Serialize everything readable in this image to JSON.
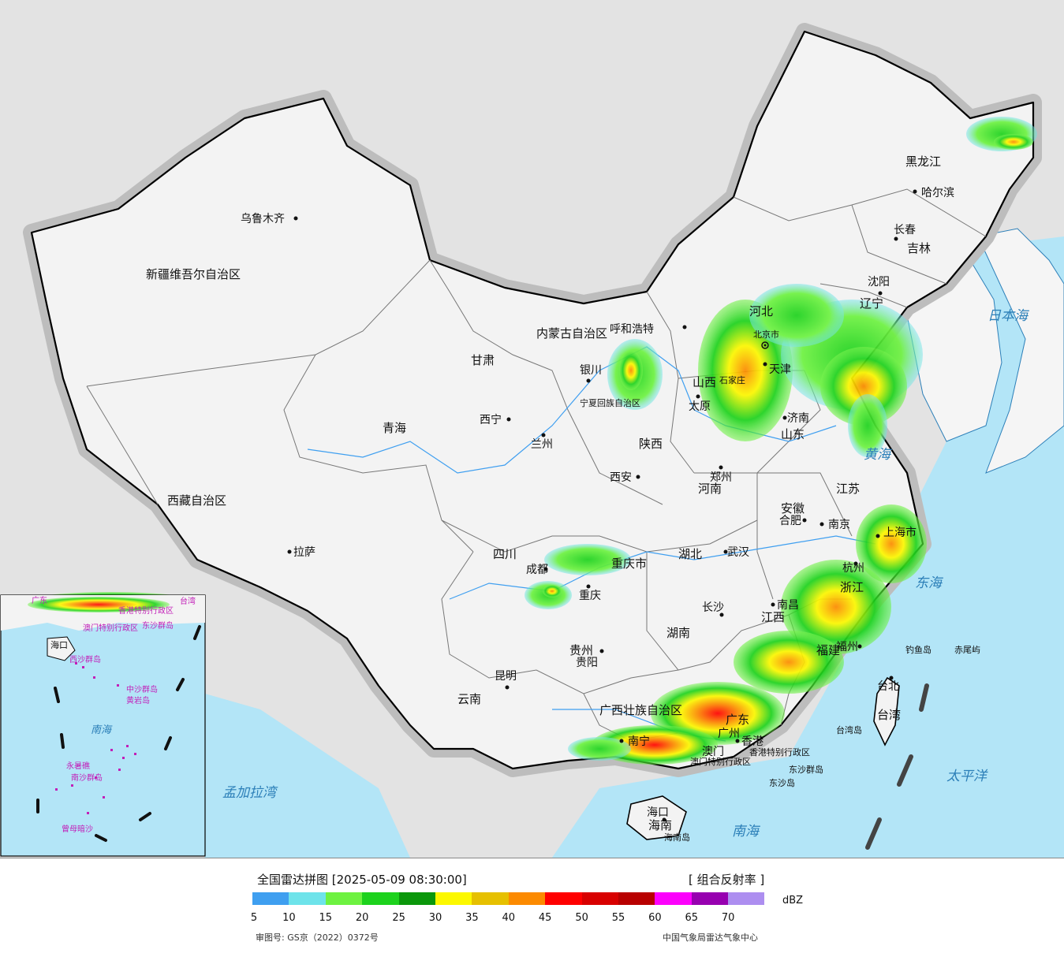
{
  "map": {
    "cities": [
      {
        "name": "乌鲁木齐"
      },
      {
        "name": "拉萨"
      },
      {
        "name": "西宁"
      },
      {
        "name": "兰州"
      },
      {
        "name": "银川"
      },
      {
        "name": "呼和浩特"
      },
      {
        "name": "北京市"
      },
      {
        "name": "天津"
      },
      {
        "name": "太原"
      },
      {
        "name": "济南"
      },
      {
        "name": "郑州"
      },
      {
        "name": "西安"
      },
      {
        "name": "成都"
      },
      {
        "name": "重庆"
      },
      {
        "name": "武汉"
      },
      {
        "name": "合肥"
      },
      {
        "name": "南京"
      },
      {
        "name": "上海市"
      },
      {
        "name": "杭州"
      },
      {
        "name": "南昌"
      },
      {
        "name": "长沙"
      },
      {
        "name": "贵阳"
      },
      {
        "name": "昆明"
      },
      {
        "name": "南宁"
      },
      {
        "name": "广州"
      },
      {
        "name": "香港"
      },
      {
        "name": "澳门"
      },
      {
        "name": "福州"
      },
      {
        "name": "台北"
      },
      {
        "name": "海口"
      },
      {
        "name": "沈阳"
      },
      {
        "name": "长春"
      },
      {
        "name": "哈尔滨"
      },
      {
        "name": "石家庄"
      }
    ],
    "provinces": [
      "新疆维吾尔自治区",
      "西藏自治区",
      "青海",
      "甘肃",
      "内蒙古自治区",
      "黑龙江",
      "吉林",
      "辽宁",
      "河北",
      "山西",
      "山东",
      "河南",
      "陕西",
      "四川",
      "重庆市",
      "湖北",
      "湖南",
      "江西",
      "福建",
      "浙江",
      "安徽",
      "江苏",
      "贵州",
      "云南",
      "广西壮族自治区",
      "广东",
      "宁夏回族自治区",
      "香港特别行政区",
      "澳门特别行政区",
      "台湾",
      "海南"
    ],
    "seas": [
      "日本海",
      "黄海",
      "东海",
      "太平洋",
      "南海",
      "孟加拉湾"
    ],
    "islands": [
      "钓鱼岛",
      "赤尾屿",
      "台湾岛",
      "海南岛",
      "东沙群岛",
      "东沙岛"
    ],
    "inset_labels": [
      "广东",
      "台湾",
      "香港特别行政区",
      "澳门特别行政区",
      "海口",
      "东沙群岛",
      "西沙群岛",
      "中沙群岛",
      "黄岩岛",
      "南海",
      "南沙群岛",
      "曾母暗沙",
      "永暑礁"
    ]
  },
  "legend": {
    "title": "全国雷达拼图 [2025-05-09 08:30:00]",
    "product": "[ 组合反射率 ]",
    "unit": "dBZ",
    "colors": [
      "#3f9ff0",
      "#6ee3ea",
      "#6ef241",
      "#1dd21d",
      "#0b970b",
      "#fcf800",
      "#e6c000",
      "#fc8a00",
      "#ff0000",
      "#d80000",
      "#b80000",
      "#fc00fc",
      "#9700b0",
      "#ad8ef0"
    ],
    "ticks": [
      "5",
      "10",
      "15",
      "20",
      "25",
      "30",
      "35",
      "40",
      "45",
      "50",
      "55",
      "60",
      "65",
      "70"
    ],
    "approval": "审图号: GS京（2022）0372号",
    "credit": "中国气象局雷达气象中心"
  }
}
